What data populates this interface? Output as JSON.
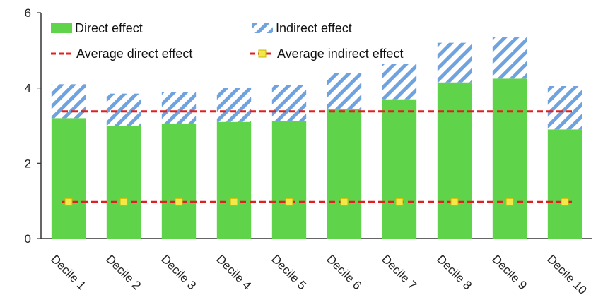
{
  "chart_data": {
    "type": "bar",
    "stacked": true,
    "categories": [
      "Decile 1",
      "Decile 2",
      "Decile 3",
      "Decile 4",
      "Decile 5",
      "Decile 6",
      "Decile 7",
      "Decile 8",
      "Decile 9",
      "Decile 10"
    ],
    "series": [
      {
        "name": "Direct effect",
        "color": "#5fd34a",
        "values": [
          3.2,
          3.0,
          3.05,
          3.1,
          3.12,
          3.45,
          3.7,
          4.15,
          4.25,
          2.9
        ]
      },
      {
        "name": "Indirect effect",
        "color": "#6fa3e0",
        "pattern": "diagonal-hatch",
        "values": [
          0.9,
          0.85,
          0.85,
          0.9,
          0.95,
          0.95,
          0.95,
          1.05,
          1.1,
          1.15
        ]
      }
    ],
    "lines": [
      {
        "name": "Average direct effect",
        "color": "#e02020",
        "style": "dashed",
        "value": 3.38
      },
      {
        "name": "Average indirect effect",
        "color": "#e02020",
        "style": "dashed",
        "marker": "square",
        "marker_color": "#f2e84a",
        "value": 0.97
      }
    ],
    "ylim": [
      0,
      6
    ],
    "yticks": [
      "0",
      "2",
      "4",
      "6"
    ],
    "yticks_values": [
      0,
      2,
      4,
      6
    ],
    "xlabel": "",
    "ylabel": "",
    "title": "",
    "grid": false,
    "legend_position": "top"
  }
}
